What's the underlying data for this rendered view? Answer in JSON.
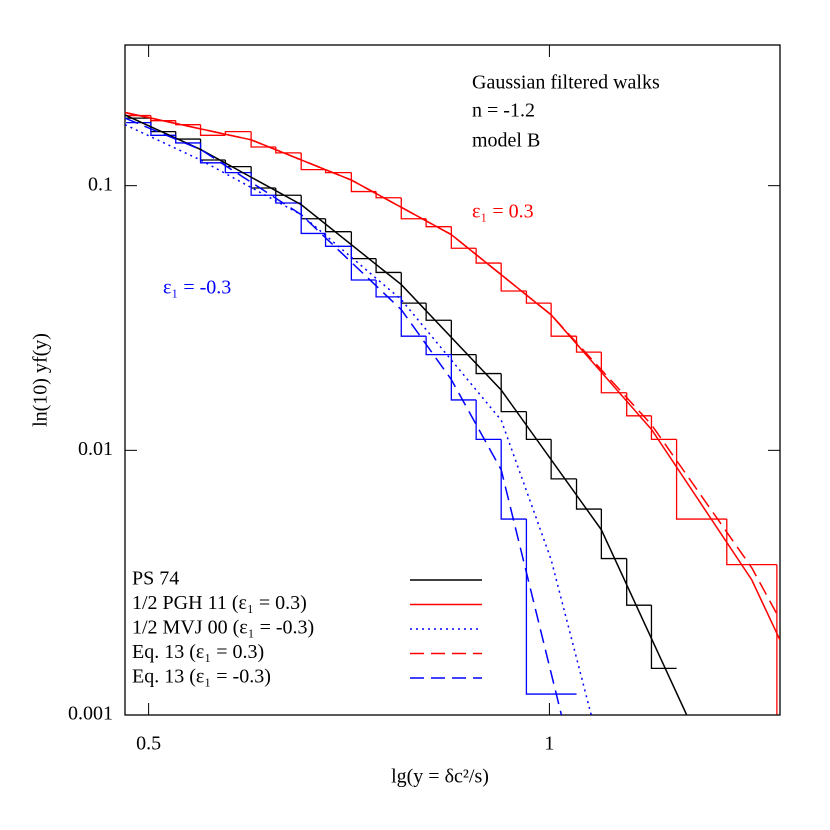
{
  "chart_data": {
    "type": "line",
    "xlabel": "lg(y = δc²/s)",
    "ylabel": "ln(10) yf(y)",
    "annotations": [
      {
        "text": "Gaussian filtered walks",
        "color": "#000000"
      },
      {
        "text": "n = -1.2",
        "color": "#000000"
      },
      {
        "text": "model B",
        "color": "#000000"
      },
      {
        "text": "ε₁ = 0.3",
        "color": "#ff0000"
      },
      {
        "text": "ε₁ = -0.3",
        "color": "#0000ff"
      }
    ],
    "xscale": "log",
    "yscale": "log",
    "xlim": [
      0.48,
      1.49
    ],
    "ylim": [
      0.001,
      0.34
    ],
    "xticks": [
      0.5,
      1
    ],
    "yticks": [
      0.001,
      0.01,
      0.1
    ],
    "legend": "lower left",
    "series": [
      {
        "name": "PS 74",
        "color": "#000000",
        "style": "solid",
        "x": [
          0.48,
          0.547,
          0.651,
          0.774,
          0.92,
          1.094,
          1.268
        ],
        "values": [
          0.185,
          0.137,
          0.0848,
          0.0423,
          0.0169,
          0.00501,
          0.001
        ]
      },
      {
        "name": "1/2 PGH 11 (ε₁ = 0.3)",
        "color": "#ff0000",
        "style": "solid",
        "x": [
          0.48,
          0.597,
          0.71,
          0.844,
          1.003,
          1.193,
          1.419,
          1.49
        ],
        "values": [
          0.189,
          0.149,
          0.105,
          0.0653,
          0.0325,
          0.012,
          0.00324,
          0.00192
        ]
      },
      {
        "name": "1/2 MVJ 00 (ε₁ = -0.3)",
        "color": "#0000ff",
        "style": "dotted",
        "x": [
          0.48,
          0.547,
          0.651,
          0.774,
          0.92,
          1.003,
          1.075
        ],
        "values": [
          0.17,
          0.125,
          0.0777,
          0.0371,
          0.013,
          0.00386,
          0.001
        ]
      },
      {
        "name": "Eq. 13 (ε₁ = 0.3)",
        "color": "#ff0000",
        "style": "dashed",
        "x": [
          0.48,
          0.597,
          0.71,
          0.844,
          1.003,
          1.193,
          1.419,
          1.49
        ],
        "values": [
          0.189,
          0.149,
          0.105,
          0.0653,
          0.0325,
          0.0125,
          0.0036,
          0.00229
        ]
      },
      {
        "name": "Eq. 13 (ε₁ = -0.3)",
        "color": "#0000ff",
        "style": "dashed",
        "x": [
          0.48,
          0.547,
          0.651,
          0.774,
          0.844,
          0.92,
          1.021
        ],
        "values": [
          0.18,
          0.137,
          0.0777,
          0.034,
          0.0185,
          0.00844,
          0.001
        ]
      }
    ],
    "histograms": [
      {
        "color": "#000000",
        "bins": [
          0.481,
          0.502,
          0.524,
          0.547,
          0.571,
          0.597,
          0.623,
          0.651,
          0.679,
          0.71,
          0.741,
          0.774,
          0.808,
          0.844,
          0.881,
          0.92,
          0.961,
          1.003,
          1.048,
          1.094,
          1.143,
          1.193,
          1.246
        ],
        "values": [
          0.18,
          0.16,
          0.15,
          0.125,
          0.118,
          0.098,
          0.092,
          0.075,
          0.067,
          0.053,
          0.047,
          0.036,
          0.031,
          0.023,
          0.0195,
          0.014,
          0.011,
          0.0078,
          0.006,
          0.0039,
          0.0026,
          0.0015
        ]
      },
      {
        "color": "#ff0000",
        "bins": [
          0.481,
          0.502,
          0.524,
          0.547,
          0.571,
          0.597,
          0.623,
          0.651,
          0.679,
          0.71,
          0.741,
          0.774,
          0.808,
          0.844,
          0.881,
          0.92,
          0.961,
          1.003,
          1.048,
          1.094,
          1.143,
          1.193,
          1.246,
          1.301,
          1.359,
          1.419,
          1.482
        ],
        "values": [
          0.184,
          0.176,
          0.17,
          0.155,
          0.16,
          0.14,
          0.133,
          0.115,
          0.112,
          0.095,
          0.09,
          0.075,
          0.07,
          0.058,
          0.051,
          0.04,
          0.036,
          0.027,
          0.0235,
          0.0165,
          0.0135,
          0.011,
          0.0055,
          0.0055,
          0.0037,
          0.0037,
          0.0009
        ]
      },
      {
        "color": "#0000ff",
        "bins": [
          0.481,
          0.502,
          0.524,
          0.547,
          0.571,
          0.597,
          0.623,
          0.651,
          0.679,
          0.71,
          0.741,
          0.774,
          0.808,
          0.844,
          0.881,
          0.92,
          0.961,
          1.003,
          1.048
        ],
        "values": [
          0.173,
          0.155,
          0.145,
          0.122,
          0.112,
          0.092,
          0.086,
          0.066,
          0.059,
          0.044,
          0.038,
          0.027,
          0.023,
          0.0155,
          0.011,
          0.0055,
          0.0012,
          0.0012
        ]
      }
    ]
  }
}
